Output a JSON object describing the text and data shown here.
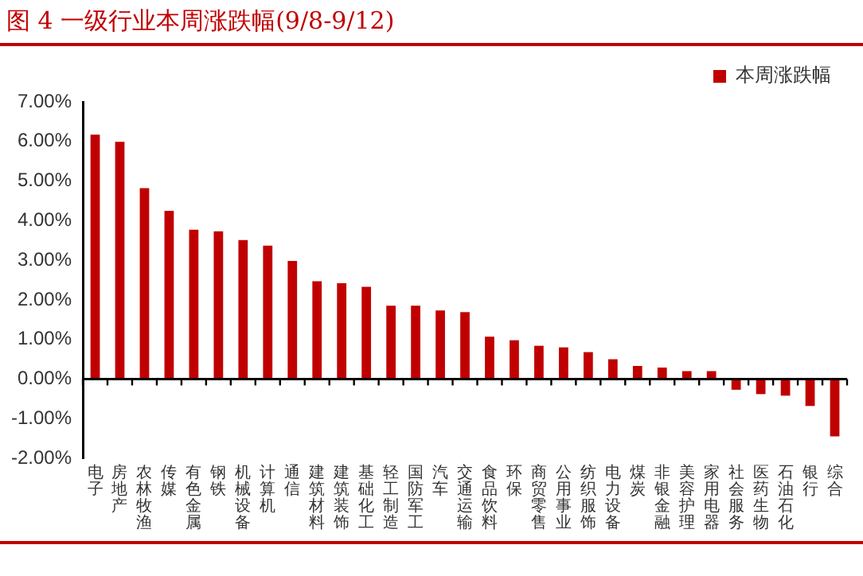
{
  "chart_data": {
    "type": "bar",
    "title": "图 4 一级行业本周涨跌幅(9/8-9/12)",
    "categories": [
      "电子",
      "房地产",
      "农林牧渔",
      "传媒",
      "有色金属",
      "钢铁",
      "机械设备",
      "计算机",
      "通信",
      "建筑材料",
      "建筑装饰",
      "基础化工",
      "轻工制造",
      "国防军工",
      "汽车",
      "交通运输",
      "食品饮料",
      "环保",
      "商贸零售",
      "公用事业",
      "纺织服饰",
      "电力设备",
      "煤炭",
      "非银金融",
      "美容护理",
      "家用电器",
      "社会服务",
      "医药生物",
      "石油石化",
      "银行",
      "综合"
    ],
    "series": [
      {
        "name": "本周涨跌幅",
        "color": "#c00000",
        "values": [
          6.17,
          5.99,
          4.82,
          4.25,
          3.77,
          3.73,
          3.51,
          3.37,
          2.98,
          2.47,
          2.42,
          2.33,
          1.85,
          1.85,
          1.73,
          1.69,
          1.07,
          0.98,
          0.84,
          0.8,
          0.68,
          0.5,
          0.33,
          0.29,
          0.2,
          0.2,
          -0.27,
          -0.38,
          -0.42,
          -0.68,
          -1.45
        ]
      }
    ],
    "ylim": [
      -2,
      7
    ],
    "yticks": [
      {
        "value": -2,
        "label": "-2.00%"
      },
      {
        "value": -1,
        "label": "-1.00%"
      },
      {
        "value": 0,
        "label": "0.00%"
      },
      {
        "value": 1,
        "label": "1.00%"
      },
      {
        "value": 2,
        "label": "2.00%"
      },
      {
        "value": 3,
        "label": "3.00%"
      },
      {
        "value": 4,
        "label": "4.00%"
      },
      {
        "value": 5,
        "label": "5.00%"
      },
      {
        "value": 6,
        "label": "6.00%"
      },
      {
        "value": 7,
        "label": "7.00%"
      }
    ],
    "legend": "top right"
  }
}
